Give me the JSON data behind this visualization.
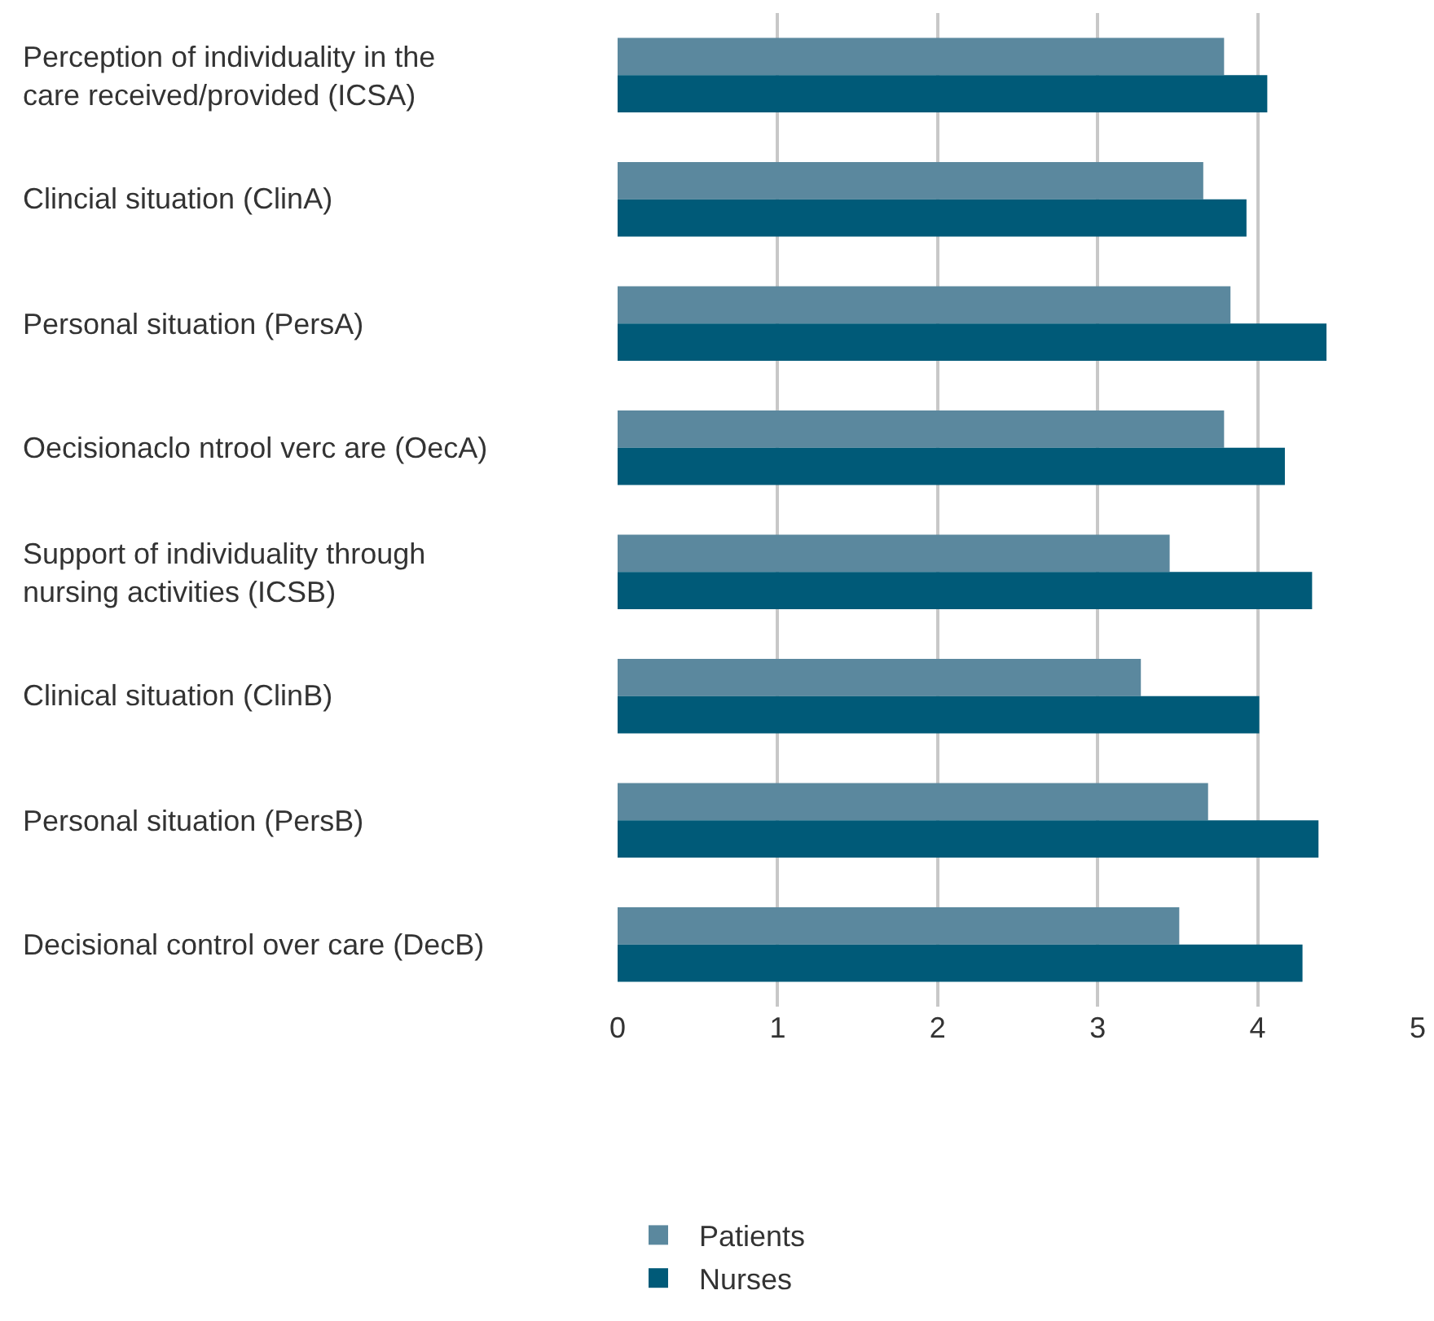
{
  "chart_data": {
    "type": "bar",
    "orientation": "horizontal",
    "categories": [
      "Perception of individuality in the care received/provided (ICSA)",
      "Clincial situation (ClinA)",
      "Personal situation (PersA)",
      "Oecisionaclo ntrool verc are (OecA)",
      "Support of individuality through nursing activities (ICSB)",
      "Clinical situation (ClinB)",
      "Personal situation (PersB)",
      "Decisional control over care (DecB)"
    ],
    "series": [
      {
        "name": "Patients",
        "color": "#5b889e",
        "values": [
          3.79,
          3.66,
          3.83,
          3.79,
          3.45,
          3.27,
          3.69,
          3.51
        ]
      },
      {
        "name": "Nurses",
        "color": "#005a78",
        "values": [
          4.06,
          3.93,
          4.43,
          4.17,
          4.34,
          4.01,
          4.38,
          4.28
        ]
      }
    ],
    "xlim": [
      0,
      5
    ],
    "xticks": [
      0,
      1,
      2,
      3,
      4,
      5
    ],
    "grid": "x",
    "legend": "bottom"
  }
}
